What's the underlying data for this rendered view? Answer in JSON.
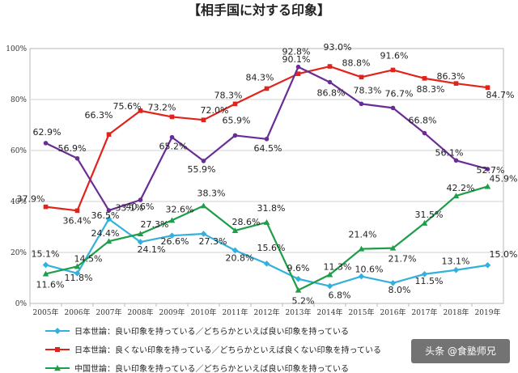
{
  "chart_data": {
    "type": "line",
    "title": "【相手国に対する印象】",
    "categories": [
      "2005年",
      "2006年",
      "2007年",
      "2008年",
      "2009年",
      "2010年",
      "2011年",
      "2012年",
      "2013年",
      "2014年",
      "2015年",
      "2016年",
      "2017年",
      "2018年",
      "2019年"
    ],
    "ylim": [
      0,
      100
    ],
    "yticks": [
      "0%",
      "20%",
      "40%",
      "60%",
      "80%",
      "100%"
    ],
    "grid": "horizontal",
    "legend_position": "bottom",
    "series": [
      {
        "name": "日本世論：良い印象を持っている／どちらかといえば良い印象を持っている",
        "color": "#33b1dc",
        "marker": "diamond",
        "values": [
          15.1,
          11.8,
          33.1,
          24.1,
          26.6,
          27.3,
          20.8,
          15.6,
          9.6,
          6.8,
          10.6,
          8.0,
          11.5,
          13.1,
          15.0
        ]
      },
      {
        "name": "日本世論：良くない印象を持っている／どちらかといえば良くない印象を持っている",
        "color": "#e0231b",
        "marker": "square",
        "values": [
          37.9,
          36.4,
          66.3,
          75.6,
          73.2,
          72.0,
          78.3,
          84.3,
          90.1,
          93.0,
          88.8,
          91.6,
          88.3,
          86.3,
          84.7
        ]
      },
      {
        "name": "中国世論：良い印象を持っている／どちらかといえば良い印象を持っている",
        "color": "#1f9e4a",
        "marker": "triangle",
        "values": [
          11.6,
          14.5,
          24.4,
          27.3,
          32.6,
          38.3,
          28.6,
          31.8,
          5.2,
          11.3,
          21.4,
          21.7,
          31.5,
          42.2,
          45.9
        ]
      },
      {
        "name": "",
        "color": "#6a2d96",
        "marker": "circle",
        "values": [
          62.9,
          56.9,
          36.5,
          40.6,
          65.2,
          55.9,
          65.9,
          64.5,
          92.8,
          86.8,
          78.3,
          76.7,
          66.8,
          56.1,
          52.7
        ]
      }
    ],
    "data_labels": [
      [
        "15.1%",
        "11.8%",
        "33.1%",
        "24.1%",
        "26.6%",
        "27.3%",
        "20.8%",
        "15.6%",
        "9.6%",
        "6.8%",
        "10.6%",
        "8.0%",
        "11.5%",
        "13.1%",
        "15.0%"
      ],
      [
        "37.9%",
        "36.4%",
        "66.3%",
        "75.6%",
        "73.2%",
        "72.0%",
        "78.3%",
        "84.3%",
        "90.1%",
        "93.0%",
        "88.8%",
        "91.6%",
        "88.3%",
        "86.3%",
        "84.7%"
      ],
      [
        "11.6%",
        "14.5%",
        "24.4%",
        "27.3%",
        "32.6%",
        "38.3%",
        "28.6%",
        "31.8%",
        "5.2%",
        "11.3%",
        "21.4%",
        "21.7%",
        "31.5%",
        "42.2%",
        "45.9%"
      ],
      [
        "62.9%",
        "56.9%",
        "36.5%",
        "40.6%",
        "65.2%",
        "55.9%",
        "65.9%",
        "64.5%",
        "92.8%",
        "86.8%",
        "78.3%",
        "76.7%",
        "66.8%",
        "56.1%",
        "52.7%"
      ]
    ]
  },
  "watermark": {
    "text": "头条 @食塾师兄"
  }
}
